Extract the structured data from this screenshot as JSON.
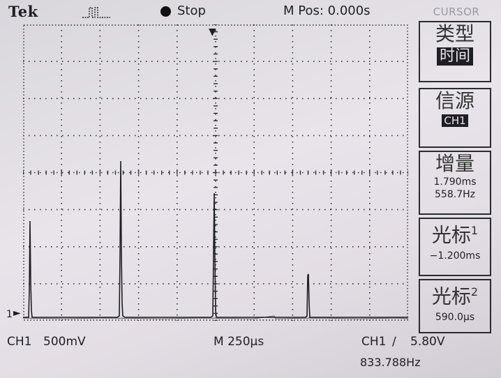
{
  "header": {
    "brand": "Tek",
    "trigger_icon": "pulse-icon",
    "run_state": "Stop",
    "position": "M Pos: 0.000s",
    "menu_title": "CURSOR"
  },
  "footer": {
    "channel": "CH1",
    "volts_div": "500mV",
    "time_div": "M 250µs",
    "trigger_source": "CH1",
    "trigger_slope": "∕",
    "trigger_level": "5.80V",
    "frequency": "833.788Hz"
  },
  "markers": {
    "ground": "1",
    "trigger_arrow": "▼"
  },
  "menu": {
    "type_label": "类型",
    "type_value": "时间",
    "source_label": "信源",
    "source_value": "CH1",
    "delta_label": "增量",
    "delta_time": "1.790ms",
    "delta_freq": "558.7Hz",
    "cursor1_label": "光标",
    "cursor1_index": "1",
    "cursor1_value": "−1.200ms",
    "cursor2_label": "光标",
    "cursor2_index": "2",
    "cursor2_value": "590.0µs"
  },
  "colors": {
    "trace": "#1d1d22",
    "grid": "#2c2c34"
  }
}
